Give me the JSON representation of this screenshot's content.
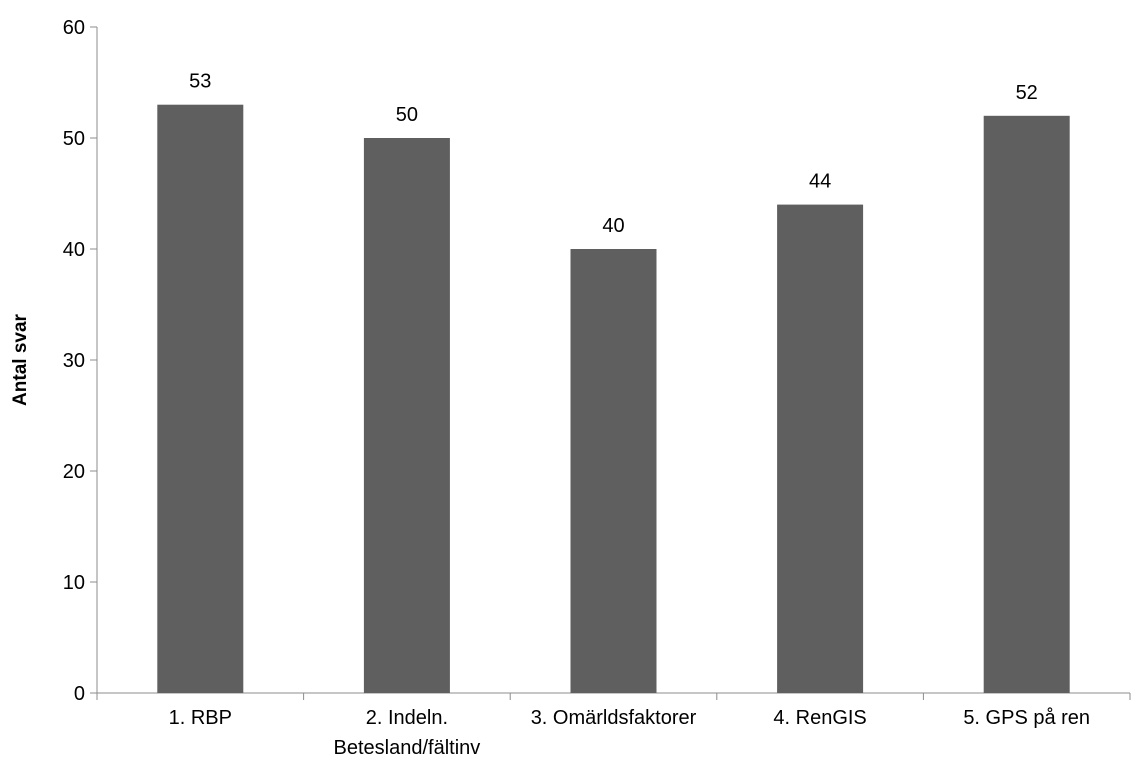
{
  "chart_data": {
    "type": "bar",
    "title": "",
    "xlabel": "",
    "ylabel": "Antal svar",
    "categories": [
      [
        "1. RBP"
      ],
      [
        "2. Indeln.",
        "Betesland/fältinv"
      ],
      [
        "3. Omärldsfaktorer"
      ],
      [
        "4. RenGIS"
      ],
      [
        "5. GPS på ren"
      ]
    ],
    "values": [
      53,
      50,
      40,
      44,
      52
    ],
    "data_labels": [
      "53",
      "50",
      "40",
      "44",
      "52"
    ],
    "ylim": [
      0,
      60
    ],
    "yticks": [
      0,
      10,
      20,
      30,
      40,
      50,
      60
    ],
    "grid": false,
    "legend": "none",
    "bar_color": "#5f5f5f",
    "axis_color": "#8c8c8c"
  }
}
